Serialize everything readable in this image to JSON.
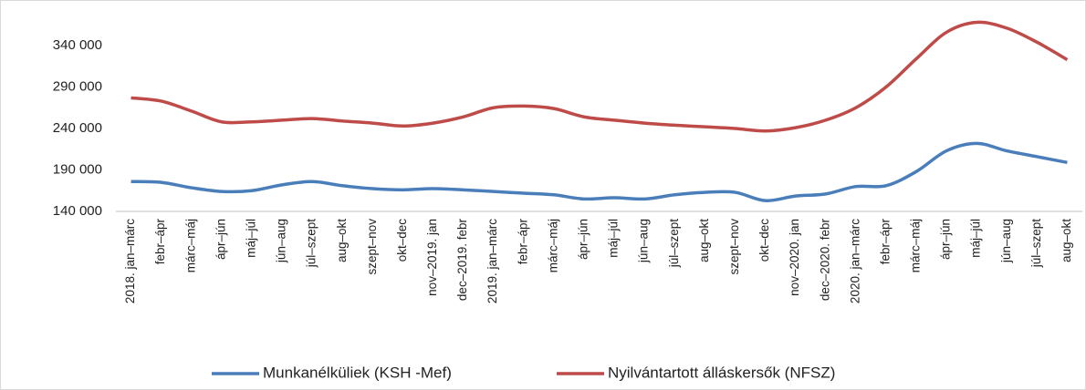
{
  "chart_data": {
    "type": "line",
    "categories": [
      "2018. jan–márc",
      "febr–ápr",
      "márc–máj",
      "ápr–jún",
      "máj–júl",
      "jún–aug",
      "júl–szept",
      "aug–okt",
      "szept–nov",
      "okt–dec",
      "nov–2019. jan",
      "dec–2019. febr",
      "2019. jan–márc",
      "febr–ápr",
      "márc–máj",
      "ápr–jún",
      "máj–júl",
      "jún–aug",
      "júl–szept",
      "aug–okt",
      "szept–nov",
      "okt–dec",
      "nov–2020. jan",
      "dec–2020. febr",
      "2020. jan–márc",
      "febr–ápr",
      "márc–máj",
      "ápr–jún",
      "máj–júl",
      "jún–aug",
      "júl–szept",
      "aug–okt"
    ],
    "series": [
      {
        "name": "Munkanélküliek (KSH -Mef)",
        "color": "#4a7ebb",
        "values": [
          176000,
          175000,
          168500,
          164000,
          165000,
          172000,
          176000,
          171000,
          167500,
          166000,
          167500,
          166000,
          164000,
          162000,
          160000,
          155000,
          156500,
          155000,
          160000,
          163000,
          163000,
          153000,
          158500,
          161000,
          170000,
          171000,
          188000,
          213000,
          222000,
          213000,
          206000,
          199000
        ]
      },
      {
        "name": "Nyilvántartott álláskersők (NFSZ)",
        "color": "#be4b48",
        "values": [
          277000,
          273000,
          261000,
          248000,
          248000,
          250000,
          252000,
          249000,
          246500,
          243000,
          246500,
          254000,
          265000,
          267000,
          264000,
          254000,
          250000,
          246500,
          244000,
          242000,
          240000,
          237000,
          241000,
          250000,
          265000,
          290000,
          324000,
          356000,
          368000,
          361000,
          344000,
          323000
        ]
      }
    ],
    "ylim": [
      140000,
      390000
    ],
    "yticks": [
      {
        "value": 140000,
        "label": "140 000"
      },
      {
        "value": 190000,
        "label": "190 000"
      },
      {
        "value": 240000,
        "label": "240 000"
      },
      {
        "value": 290000,
        "label": "290 000"
      },
      {
        "value": 340000,
        "label": "340 000"
      }
    ],
    "grid": false,
    "legend": "bottom"
  }
}
